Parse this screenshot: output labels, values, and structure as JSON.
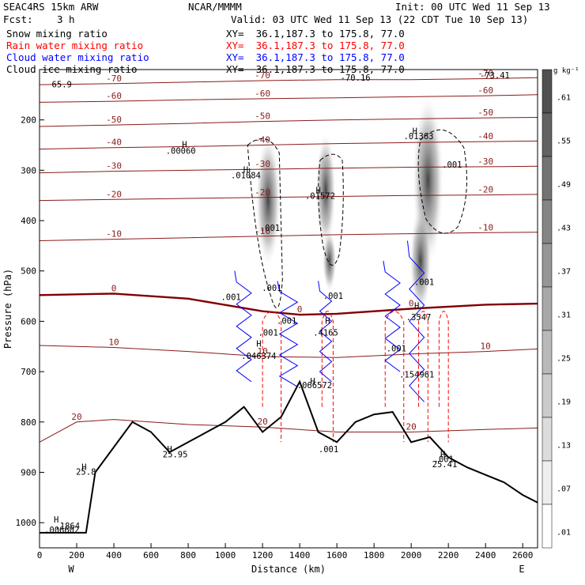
{
  "header": {
    "title": "SEAC4RS 15km ARW",
    "source": "NCAR/MMMM",
    "init": "Init: 00 UTC Wed 11 Sep 13",
    "fcst_label": "Fcst:",
    "fcst_value": "3 h",
    "valid": "Valid: 03 UTC Wed 11 Sep 13 (22 CDT Tue 10 Sep 13)"
  },
  "fields": [
    {
      "name": "Snow mixing ratio",
      "xy": "XY=  36.1,187.3 to 175.8, 77.0",
      "color": "#000000"
    },
    {
      "name": "Rain water mixing ratio",
      "xy": "XY=  36.1,187.3 to 175.8, 77.0",
      "color": "#ff0000"
    },
    {
      "name": "Cloud water mixing ratio",
      "xy": "XY=  36.1,187.3 to 175.8, 77.0",
      "color": "#0000ff"
    },
    {
      "name": "Cloud ice mixing ratio",
      "xy": "XY=  36.1,187.3 to 175.8, 77.0",
      "color": "#000000"
    }
  ],
  "colorbar": {
    "unit": "g kg⁻¹",
    "labels": [
      ".61",
      ".55",
      ".49",
      ".43",
      ".37",
      ".31",
      ".25",
      ".19",
      ".13",
      ".07",
      ".01"
    ]
  },
  "chart_data": {
    "type": "heatmap",
    "description_fields": "cross-section of mixing ratios (shaded: cloud ice) with temperature contours",
    "xlabel": "Distance (km)",
    "ylabel": "Pressure (hPa)",
    "xlim": [
      0,
      2680
    ],
    "ylim": [
      1050,
      100
    ],
    "x_ticks": [
      0,
      200,
      400,
      600,
      800,
      1000,
      1200,
      1400,
      1600,
      1800,
      2000,
      2200,
      2400,
      2600
    ],
    "y_ticks": [
      200,
      300,
      400,
      500,
      600,
      700,
      800,
      900,
      1000
    ],
    "x_end_labels": {
      "left": "W",
      "right": "E"
    },
    "temperature_contours": [
      {
        "level": "-70",
        "points": [
          [
            0,
            130
          ],
          [
            400,
            128
          ],
          [
            800,
            125
          ],
          [
            1200,
            122
          ],
          [
            1600,
            120
          ],
          [
            2000,
            120
          ],
          [
            2400,
            118
          ],
          [
            2680,
            116
          ]
        ]
      },
      {
        "level": "-60",
        "points": [
          [
            0,
            165
          ],
          [
            400,
            163
          ],
          [
            800,
            160
          ],
          [
            1200,
            158
          ],
          [
            1600,
            156
          ],
          [
            2000,
            154
          ],
          [
            2400,
            152
          ],
          [
            2680,
            150
          ]
        ]
      },
      {
        "level": "-50",
        "points": [
          [
            0,
            213
          ],
          [
            400,
            210
          ],
          [
            800,
            207
          ],
          [
            1200,
            203
          ],
          [
            1600,
            200
          ],
          [
            2000,
            198
          ],
          [
            2400,
            196
          ],
          [
            2680,
            195
          ]
        ]
      },
      {
        "level": "-40",
        "points": [
          [
            0,
            258
          ],
          [
            400,
            255
          ],
          [
            800,
            253
          ],
          [
            1200,
            250
          ],
          [
            1600,
            247
          ],
          [
            2000,
            245
          ],
          [
            2400,
            243
          ],
          [
            2680,
            242
          ]
        ]
      },
      {
        "level": "-30",
        "points": [
          [
            0,
            305
          ],
          [
            400,
            302
          ],
          [
            800,
            300
          ],
          [
            1200,
            298
          ],
          [
            1600,
            296
          ],
          [
            2000,
            294
          ],
          [
            2400,
            293
          ],
          [
            2680,
            292
          ]
        ]
      },
      {
        "level": "-20",
        "points": [
          [
            0,
            360
          ],
          [
            400,
            358
          ],
          [
            800,
            356
          ],
          [
            1200,
            354
          ],
          [
            1600,
            352
          ],
          [
            2000,
            350
          ],
          [
            2400,
            349
          ],
          [
            2680,
            348
          ]
        ]
      },
      {
        "level": "-10",
        "points": [
          [
            0,
            440
          ],
          [
            400,
            437
          ],
          [
            800,
            434
          ],
          [
            1200,
            431
          ],
          [
            1600,
            428
          ],
          [
            2000,
            426
          ],
          [
            2400,
            424
          ],
          [
            2680,
            423
          ]
        ]
      },
      {
        "level": "0",
        "points": [
          [
            0,
            548
          ],
          [
            400,
            545
          ],
          [
            800,
            555
          ],
          [
            1200,
            580
          ],
          [
            1400,
            587
          ],
          [
            1600,
            585
          ],
          [
            2000,
            575
          ],
          [
            2400,
            567
          ],
          [
            2680,
            565
          ]
        ]
      },
      {
        "level": "10",
        "points": [
          [
            0,
            648
          ],
          [
            400,
            652
          ],
          [
            800,
            660
          ],
          [
            1200,
            670
          ],
          [
            1600,
            672
          ],
          [
            2000,
            665
          ],
          [
            2400,
            660
          ],
          [
            2680,
            655
          ]
        ]
      },
      {
        "level": "20",
        "points": [
          [
            0,
            840
          ],
          [
            200,
            800
          ],
          [
            400,
            795
          ],
          [
            800,
            805
          ],
          [
            1200,
            810
          ],
          [
            1600,
            820
          ],
          [
            2000,
            820
          ],
          [
            2400,
            815
          ],
          [
            2680,
            812
          ]
        ]
      }
    ],
    "terrain": [
      [
        0,
        1020
      ],
      [
        250,
        1020
      ],
      [
        300,
        900
      ],
      [
        400,
        850
      ],
      [
        500,
        800
      ],
      [
        600,
        820
      ],
      [
        700,
        860
      ],
      [
        800,
        840
      ],
      [
        900,
        820
      ],
      [
        1000,
        800
      ],
      [
        1100,
        770
      ],
      [
        1200,
        820
      ],
      [
        1300,
        790
      ],
      [
        1400,
        720
      ],
      [
        1500,
        820
      ],
      [
        1600,
        840
      ],
      [
        1700,
        800
      ],
      [
        1800,
        785
      ],
      [
        1900,
        780
      ],
      [
        2000,
        840
      ],
      [
        2100,
        830
      ],
      [
        2200,
        870
      ],
      [
        2300,
        890
      ],
      [
        2400,
        905
      ],
      [
        2500,
        920
      ],
      [
        2600,
        945
      ],
      [
        2680,
        960
      ]
    ],
    "annotations": [
      {
        "text": "H",
        "x": 780,
        "y": 255
      },
      {
        "text": ".00060",
        "x": 760,
        "y": 267
      },
      {
        "text": "H",
        "x": 1110,
        "y": 305
      },
      {
        "text": ".01084",
        "x": 1110,
        "y": 316
      },
      {
        "text": "H",
        "x": 1500,
        "y": 346
      },
      {
        "text": ".01572",
        "x": 1510,
        "y": 357
      },
      {
        "text": "H",
        "x": 2020,
        "y": 228
      },
      {
        "text": ".01363",
        "x": 2040,
        "y": 238
      },
      {
        "text": ".001",
        "x": 1240,
        "y": 420
      },
      {
        "text": ".001",
        "x": 2220,
        "y": 295
      },
      {
        "text": ".001",
        "x": 1250,
        "y": 540
      },
      {
        "text": ".001",
        "x": 1030,
        "y": 558
      },
      {
        "text": ".001",
        "x": 1580,
        "y": 555
      },
      {
        "text": ".001",
        "x": 2070,
        "y": 528
      },
      {
        "text": ".001",
        "x": 1330,
        "y": 605
      },
      {
        "text": ".001",
        "x": 1230,
        "y": 628
      },
      {
        "text": ".001",
        "x": 1920,
        "y": 660
      },
      {
        "text": "H",
        "x": 1550,
        "y": 605
      },
      {
        "text": ".4165",
        "x": 1540,
        "y": 628
      },
      {
        "text": "H",
        "x": 2030,
        "y": 575
      },
      {
        "text": ".3547",
        "x": 2040,
        "y": 598
      },
      {
        "text": "H",
        "x": 1180,
        "y": 650
      },
      {
        "text": ".046374",
        "x": 1180,
        "y": 675
      },
      {
        "text": "H",
        "x": 1470,
        "y": 725
      },
      {
        "text": ".066572",
        "x": 1480,
        "y": 733
      },
      {
        "text": ".154961",
        "x": 2030,
        "y": 712
      },
      {
        "text": "H",
        "x": 700,
        "y": 860
      },
      {
        "text": "25.95",
        "x": 730,
        "y": 870
      },
      {
        "text": "H",
        "x": 240,
        "y": 895
      },
      {
        "text": "25.8",
        "x": 250,
        "y": 905
      },
      {
        "text": "H",
        "x": 2170,
        "y": 870
      },
      {
        "text": ".001",
        "x": 2175,
        "y": 880
      },
      {
        "text": "25.41",
        "x": 2180,
        "y": 890
      },
      {
        "text": ".001",
        "x": 1555,
        "y": 860
      },
      {
        "text": "H",
        "x": 90,
        "y": 1000
      },
      {
        "text": ".1864",
        "x": 150,
        "y": 1012
      },
      {
        "text": ".006602",
        "x": 120,
        "y": 1020
      },
      {
        "text": "65.9",
        "x": 120,
        "y": 135
      },
      {
        "text": "-70.16",
        "x": 1700,
        "y": 122
      },
      {
        "text": "-73.41",
        "x": 2450,
        "y": 117
      }
    ]
  }
}
